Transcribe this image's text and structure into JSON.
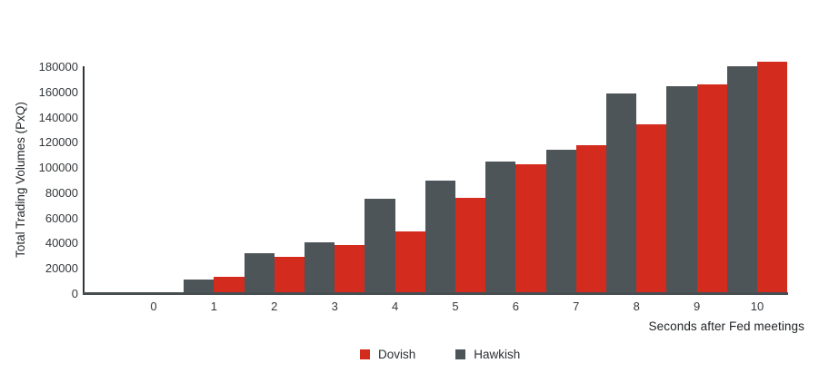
{
  "chart_data": {
    "type": "bar",
    "categories": [
      "0",
      "1",
      "2",
      "3",
      "4",
      "5",
      "6",
      "7",
      "8",
      "9",
      "10"
    ],
    "series": [
      {
        "name": "Dovish",
        "color": "#d32b1e",
        "values": [
          300,
          14000,
          29500,
          39000,
          50000,
          76000,
          103000,
          118000,
          135000,
          166000,
          184500
        ]
      },
      {
        "name": "Hawkish",
        "color": "#4d5558",
        "values": [
          1200,
          11500,
          32500,
          41000,
          75500,
          90000,
          105000,
          114500,
          159000,
          165000,
          180500
        ]
      }
    ],
    "title": "",
    "xlabel": "Seconds after Fed meetings",
    "ylabel": "Total Trading Volumes (PxQ)",
    "ylim": [
      0,
      180000
    ],
    "yticks": [
      0,
      20000,
      40000,
      60000,
      80000,
      100000,
      120000,
      140000,
      160000,
      180000
    ],
    "grid": false,
    "legend_position": "bottom-center"
  }
}
